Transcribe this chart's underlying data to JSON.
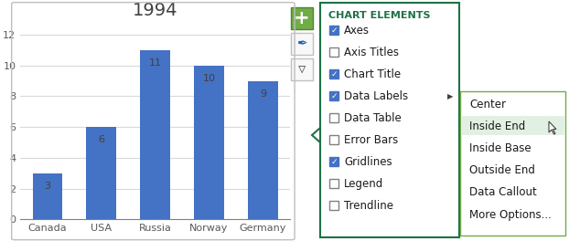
{
  "title": "1994",
  "categories": [
    "Canada",
    "USA",
    "Russia",
    "Norway",
    "Germany"
  ],
  "values": [
    3,
    6,
    11,
    10,
    9
  ],
  "bar_color": "#4472C4",
  "ylim": [
    0,
    13
  ],
  "yticks": [
    0,
    2,
    4,
    6,
    8,
    10,
    12
  ],
  "chart_bg": "#ffffff",
  "outer_bg": "#ffffff",
  "grid_color": "#d9d9d9",
  "chart_border_color": "#bfbfbf",
  "title_fontsize": 14,
  "tick_fontsize": 8,
  "data_label_fontsize": 8,
  "chart_elements_title": "CHART ELEMENTS",
  "chart_elements_title_color": "#1e7145",
  "chart_elements_items": [
    {
      "label": "Axes",
      "checked": true
    },
    {
      "label": "Axis Titles",
      "checked": false
    },
    {
      "label": "Chart Title",
      "checked": true
    },
    {
      "label": "Data Labels",
      "checked": true,
      "has_arrow": true
    },
    {
      "label": "Data Table",
      "checked": false
    },
    {
      "label": "Error Bars",
      "checked": false
    },
    {
      "label": "Gridlines",
      "checked": true
    },
    {
      "label": "Legend",
      "checked": false
    },
    {
      "label": "Trendline",
      "checked": false
    }
  ],
  "submenu_items": [
    "Center",
    "Inside End",
    "Inside Base",
    "Outside End",
    "Data Callout",
    "More Options..."
  ],
  "submenu_highlighted": "Inside End",
  "submenu_highlight_color": "#e2f0e4",
  "panel_border_color": "#1e7145",
  "submenu_border_color": "#70ad47",
  "plus_bg": "#70ad47",
  "plus_border": "#548235",
  "btn_border": "#c0c0c0",
  "btn_bg": "#f8f8f8",
  "checkbox_checked_bg": "#4472C4",
  "checkbox_checked_border": "#4472C4",
  "checkbox_unchecked_bg": "#ffffff",
  "checkbox_unchecked_border": "#808080"
}
